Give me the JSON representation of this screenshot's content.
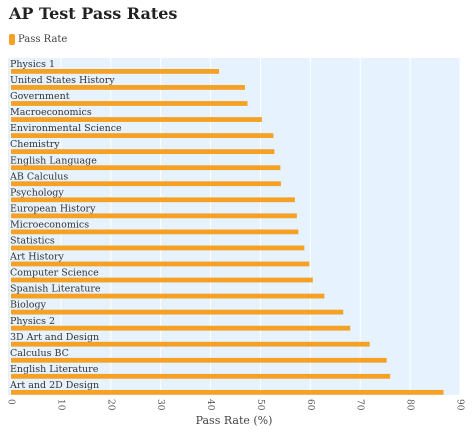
{
  "chart_data": {
    "type": "bar",
    "orientation": "horizontal",
    "title": "AP Test Pass Rates",
    "xlabel": "Pass Rate (%)",
    "ylabel": "",
    "xlim": [
      0,
      90
    ],
    "ticks": [
      0,
      10,
      20,
      30,
      40,
      50,
      60,
      70,
      80,
      90
    ],
    "legend": {
      "position": "top-left",
      "entries": [
        "Pass Rate"
      ]
    },
    "series": [
      {
        "name": "Pass Rate",
        "color": "#f4a125",
        "values": [
          41.7,
          46.9,
          47.4,
          50.3,
          52.6,
          52.8,
          54.0,
          54.1,
          56.9,
          57.3,
          57.6,
          58.8,
          59.8,
          60.5,
          62.8,
          66.6,
          68.0,
          71.9,
          75.3,
          76.0,
          86.7
        ]
      }
    ],
    "categories": [
      "Physics 1",
      "United States History",
      "Government",
      "Macroeconomics",
      "Environmental Science",
      "Chemistry",
      "English Language",
      "AB Calculus",
      "Psychology",
      "European History",
      "Microeconomics",
      "Statistics",
      "Art History",
      "Computer Science",
      "Spanish Literature",
      "Biology",
      "Physics 2",
      "3D Art and Design",
      "Calculus BC",
      "English Literature",
      "Art and 2D Design"
    ],
    "grid": true
  }
}
